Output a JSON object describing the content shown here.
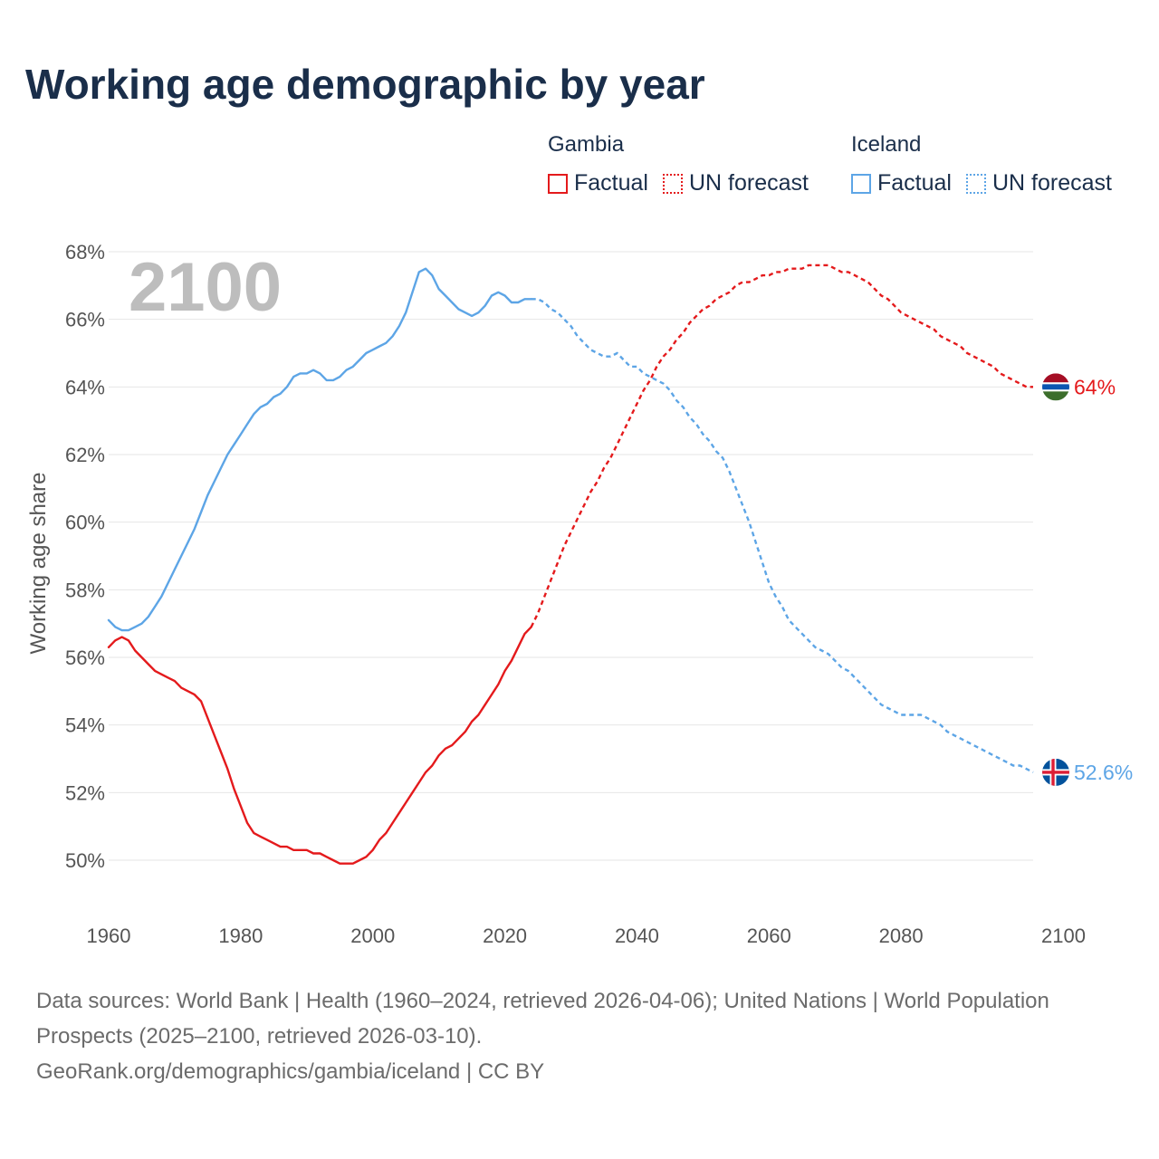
{
  "title": "Working age demographic by year",
  "legend": {
    "groups": [
      {
        "country": "Gambia",
        "color": "#e41a1c",
        "factual_label": "Factual",
        "forecast_label": "UN forecast"
      },
      {
        "country": "Iceland",
        "color": "#5da5e6",
        "factual_label": "Factual",
        "forecast_label": "UN forecast"
      }
    ]
  },
  "footer": {
    "sources": "Data sources: World Bank | Health (1960–2024, retrieved 2026-04-06); United Nations | World Population Prospects (2025–2100, retrieved 2026-03-10).",
    "link": "GeoRank.org/demographics/gambia/iceland | CC BY"
  },
  "chart_data": {
    "type": "line",
    "title": "Working age demographic by year",
    "year_label": "2100",
    "xlabel": "",
    "ylabel": "Working age share",
    "xlim": [
      1960,
      2100
    ],
    "ylim": [
      48.5,
      68.5
    ],
    "x_ticks": [
      1960,
      1980,
      2000,
      2020,
      2040,
      2060,
      2080,
      2100
    ],
    "x_tick_labels": [
      "1960",
      "1980",
      "2000",
      "2020",
      "2040",
      "2060",
      "2080",
      "2100"
    ],
    "y_ticks": [
      50,
      52,
      54,
      56,
      58,
      60,
      62,
      64,
      66,
      68
    ],
    "y_tick_labels": [
      "50%",
      "52%",
      "54%",
      "56%",
      "58%",
      "60%",
      "62%",
      "64%",
      "66%",
      "68%"
    ],
    "grid": true,
    "factual_end_year": 2024,
    "series": [
      {
        "name": "Gambia",
        "color": "#e41a1c",
        "end_label": "64%",
        "flag_colors": [
          "#a50e25",
          "#ffffff",
          "#0b56b2",
          "#ffffff",
          "#3c6e2c"
        ],
        "points": [
          [
            1960,
            56.3
          ],
          [
            1961,
            56.5
          ],
          [
            1962,
            56.6
          ],
          [
            1963,
            56.5
          ],
          [
            1964,
            56.2
          ],
          [
            1965,
            56.0
          ],
          [
            1966,
            55.8
          ],
          [
            1967,
            55.6
          ],
          [
            1968,
            55.5
          ],
          [
            1969,
            55.4
          ],
          [
            1970,
            55.3
          ],
          [
            1971,
            55.1
          ],
          [
            1972,
            55.0
          ],
          [
            1973,
            54.9
          ],
          [
            1974,
            54.7
          ],
          [
            1975,
            54.2
          ],
          [
            1976,
            53.7
          ],
          [
            1977,
            53.2
          ],
          [
            1978,
            52.7
          ],
          [
            1979,
            52.1
          ],
          [
            1980,
            51.6
          ],
          [
            1981,
            51.1
          ],
          [
            1982,
            50.8
          ],
          [
            1983,
            50.7
          ],
          [
            1984,
            50.6
          ],
          [
            1985,
            50.5
          ],
          [
            1986,
            50.4
          ],
          [
            1987,
            50.4
          ],
          [
            1988,
            50.3
          ],
          [
            1989,
            50.3
          ],
          [
            1990,
            50.3
          ],
          [
            1991,
            50.2
          ],
          [
            1992,
            50.2
          ],
          [
            1993,
            50.1
          ],
          [
            1994,
            50.0
          ],
          [
            1995,
            49.9
          ],
          [
            1996,
            49.9
          ],
          [
            1997,
            49.9
          ],
          [
            1998,
            50.0
          ],
          [
            1999,
            50.1
          ],
          [
            2000,
            50.3
          ],
          [
            2001,
            50.6
          ],
          [
            2002,
            50.8
          ],
          [
            2003,
            51.1
          ],
          [
            2004,
            51.4
          ],
          [
            2005,
            51.7
          ],
          [
            2006,
            52.0
          ],
          [
            2007,
            52.3
          ],
          [
            2008,
            52.6
          ],
          [
            2009,
            52.8
          ],
          [
            2010,
            53.1
          ],
          [
            2011,
            53.3
          ],
          [
            2012,
            53.4
          ],
          [
            2013,
            53.6
          ],
          [
            2014,
            53.8
          ],
          [
            2015,
            54.1
          ],
          [
            2016,
            54.3
          ],
          [
            2017,
            54.6
          ],
          [
            2018,
            54.9
          ],
          [
            2019,
            55.2
          ],
          [
            2020,
            55.6
          ],
          [
            2021,
            55.9
          ],
          [
            2022,
            56.3
          ],
          [
            2023,
            56.7
          ],
          [
            2024,
            56.9
          ],
          [
            2025,
            57.3
          ],
          [
            2026,
            57.8
          ],
          [
            2027,
            58.3
          ],
          [
            2028,
            58.8
          ],
          [
            2029,
            59.3
          ],
          [
            2030,
            59.7
          ],
          [
            2031,
            60.1
          ],
          [
            2032,
            60.5
          ],
          [
            2033,
            60.9
          ],
          [
            2034,
            61.2
          ],
          [
            2035,
            61.6
          ],
          [
            2036,
            61.9
          ],
          [
            2037,
            62.3
          ],
          [
            2038,
            62.7
          ],
          [
            2039,
            63.1
          ],
          [
            2040,
            63.5
          ],
          [
            2041,
            63.9
          ],
          [
            2042,
            64.2
          ],
          [
            2043,
            64.6
          ],
          [
            2044,
            64.9
          ],
          [
            2045,
            65.1
          ],
          [
            2046,
            65.4
          ],
          [
            2047,
            65.6
          ],
          [
            2048,
            65.9
          ],
          [
            2049,
            66.1
          ],
          [
            2050,
            66.3
          ],
          [
            2051,
            66.4
          ],
          [
            2052,
            66.6
          ],
          [
            2053,
            66.7
          ],
          [
            2054,
            66.8
          ],
          [
            2055,
            67.0
          ],
          [
            2056,
            67.1
          ],
          [
            2057,
            67.1
          ],
          [
            2058,
            67.2
          ],
          [
            2059,
            67.3
          ],
          [
            2060,
            67.3
          ],
          [
            2061,
            67.4
          ],
          [
            2062,
            67.4
          ],
          [
            2063,
            67.5
          ],
          [
            2064,
            67.5
          ],
          [
            2065,
            67.5
          ],
          [
            2066,
            67.6
          ],
          [
            2067,
            67.6
          ],
          [
            2068,
            67.6
          ],
          [
            2069,
            67.6
          ],
          [
            2070,
            67.5
          ],
          [
            2071,
            67.4
          ],
          [
            2072,
            67.4
          ],
          [
            2073,
            67.3
          ],
          [
            2074,
            67.2
          ],
          [
            2075,
            67.1
          ],
          [
            2076,
            66.9
          ],
          [
            2077,
            66.7
          ],
          [
            2078,
            66.6
          ],
          [
            2079,
            66.4
          ],
          [
            2080,
            66.2
          ],
          [
            2081,
            66.1
          ],
          [
            2082,
            66.0
          ],
          [
            2083,
            65.9
          ],
          [
            2084,
            65.8
          ],
          [
            2085,
            65.7
          ],
          [
            2086,
            65.5
          ],
          [
            2087,
            65.4
          ],
          [
            2088,
            65.3
          ],
          [
            2089,
            65.2
          ],
          [
            2090,
            65.0
          ],
          [
            2091,
            64.9
          ],
          [
            2092,
            64.8
          ],
          [
            2093,
            64.7
          ],
          [
            2094,
            64.6
          ],
          [
            2095,
            64.4
          ],
          [
            2096,
            64.3
          ],
          [
            2097,
            64.2
          ],
          [
            2098,
            64.1
          ],
          [
            2099,
            64.0
          ],
          [
            2100,
            64.0
          ]
        ]
      },
      {
        "name": "Iceland",
        "color": "#5da5e6",
        "end_label": "52.6%",
        "flag_colors": [
          "#02529c",
          "#ffffff",
          "#dc1e35"
        ],
        "points": [
          [
            1960,
            57.1
          ],
          [
            1961,
            56.9
          ],
          [
            1962,
            56.8
          ],
          [
            1963,
            56.8
          ],
          [
            1964,
            56.9
          ],
          [
            1965,
            57.0
          ],
          [
            1966,
            57.2
          ],
          [
            1967,
            57.5
          ],
          [
            1968,
            57.8
          ],
          [
            1969,
            58.2
          ],
          [
            1970,
            58.6
          ],
          [
            1971,
            59.0
          ],
          [
            1972,
            59.4
          ],
          [
            1973,
            59.8
          ],
          [
            1974,
            60.3
          ],
          [
            1975,
            60.8
          ],
          [
            1976,
            61.2
          ],
          [
            1977,
            61.6
          ],
          [
            1978,
            62.0
          ],
          [
            1979,
            62.3
          ],
          [
            1980,
            62.6
          ],
          [
            1981,
            62.9
          ],
          [
            1982,
            63.2
          ],
          [
            1983,
            63.4
          ],
          [
            1984,
            63.5
          ],
          [
            1985,
            63.7
          ],
          [
            1986,
            63.8
          ],
          [
            1987,
            64.0
          ],
          [
            1988,
            64.3
          ],
          [
            1989,
            64.4
          ],
          [
            1990,
            64.4
          ],
          [
            1991,
            64.5
          ],
          [
            1992,
            64.4
          ],
          [
            1993,
            64.2
          ],
          [
            1994,
            64.2
          ],
          [
            1995,
            64.3
          ],
          [
            1996,
            64.5
          ],
          [
            1997,
            64.6
          ],
          [
            1998,
            64.8
          ],
          [
            1999,
            65.0
          ],
          [
            2000,
            65.1
          ],
          [
            2001,
            65.2
          ],
          [
            2002,
            65.3
          ],
          [
            2003,
            65.5
          ],
          [
            2004,
            65.8
          ],
          [
            2005,
            66.2
          ],
          [
            2006,
            66.8
          ],
          [
            2007,
            67.4
          ],
          [
            2008,
            67.5
          ],
          [
            2009,
            67.3
          ],
          [
            2010,
            66.9
          ],
          [
            2011,
            66.7
          ],
          [
            2012,
            66.5
          ],
          [
            2013,
            66.3
          ],
          [
            2014,
            66.2
          ],
          [
            2015,
            66.1
          ],
          [
            2016,
            66.2
          ],
          [
            2017,
            66.4
          ],
          [
            2018,
            66.7
          ],
          [
            2019,
            66.8
          ],
          [
            2020,
            66.7
          ],
          [
            2021,
            66.5
          ],
          [
            2022,
            66.5
          ],
          [
            2023,
            66.6
          ],
          [
            2024,
            66.6
          ],
          [
            2025,
            66.6
          ],
          [
            2026,
            66.5
          ],
          [
            2027,
            66.3
          ],
          [
            2028,
            66.2
          ],
          [
            2029,
            66.0
          ],
          [
            2030,
            65.8
          ],
          [
            2031,
            65.5
          ],
          [
            2032,
            65.3
          ],
          [
            2033,
            65.1
          ],
          [
            2034,
            65.0
          ],
          [
            2035,
            64.9
          ],
          [
            2036,
            64.9
          ],
          [
            2037,
            65.0
          ],
          [
            2038,
            64.8
          ],
          [
            2039,
            64.6
          ],
          [
            2040,
            64.6
          ],
          [
            2041,
            64.4
          ],
          [
            2042,
            64.3
          ],
          [
            2043,
            64.2
          ],
          [
            2044,
            64.1
          ],
          [
            2045,
            63.9
          ],
          [
            2046,
            63.6
          ],
          [
            2047,
            63.4
          ],
          [
            2048,
            63.1
          ],
          [
            2049,
            62.9
          ],
          [
            2050,
            62.6
          ],
          [
            2051,
            62.4
          ],
          [
            2052,
            62.1
          ],
          [
            2053,
            61.9
          ],
          [
            2054,
            61.5
          ],
          [
            2055,
            61.0
          ],
          [
            2056,
            60.5
          ],
          [
            2057,
            60.0
          ],
          [
            2058,
            59.4
          ],
          [
            2059,
            58.8
          ],
          [
            2060,
            58.2
          ],
          [
            2061,
            57.8
          ],
          [
            2062,
            57.5
          ],
          [
            2063,
            57.1
          ],
          [
            2064,
            56.9
          ],
          [
            2065,
            56.7
          ],
          [
            2066,
            56.5
          ],
          [
            2067,
            56.3
          ],
          [
            2068,
            56.2
          ],
          [
            2069,
            56.1
          ],
          [
            2070,
            55.9
          ],
          [
            2071,
            55.7
          ],
          [
            2072,
            55.6
          ],
          [
            2073,
            55.4
          ],
          [
            2074,
            55.2
          ],
          [
            2075,
            55.0
          ],
          [
            2076,
            54.8
          ],
          [
            2077,
            54.6
          ],
          [
            2078,
            54.5
          ],
          [
            2079,
            54.4
          ],
          [
            2080,
            54.3
          ],
          [
            2081,
            54.3
          ],
          [
            2082,
            54.3
          ],
          [
            2083,
            54.3
          ],
          [
            2084,
            54.2
          ],
          [
            2085,
            54.1
          ],
          [
            2086,
            54.0
          ],
          [
            2087,
            53.8
          ],
          [
            2088,
            53.7
          ],
          [
            2089,
            53.6
          ],
          [
            2090,
            53.5
          ],
          [
            2091,
            53.4
          ],
          [
            2092,
            53.3
          ],
          [
            2093,
            53.2
          ],
          [
            2094,
            53.1
          ],
          [
            2095,
            53.0
          ],
          [
            2096,
            52.9
          ],
          [
            2097,
            52.8
          ],
          [
            2098,
            52.8
          ],
          [
            2099,
            52.7
          ],
          [
            2100,
            52.6
          ]
        ]
      }
    ]
  }
}
